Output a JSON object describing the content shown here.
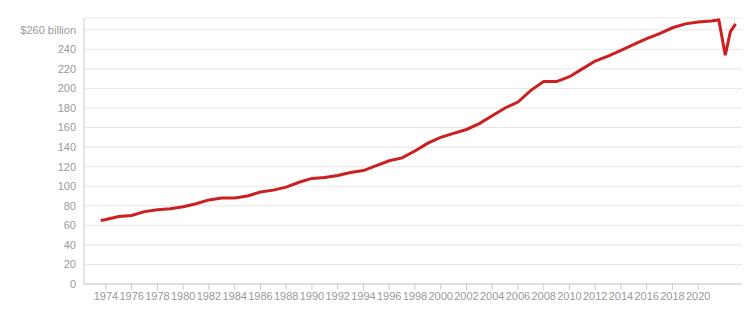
{
  "chart_data": {
    "type": "line",
    "color": "#cc1f1f",
    "grid": true,
    "line_style": "solid",
    "x": [
      1973.6,
      1974,
      1975,
      1976,
      1977,
      1978,
      1979,
      1980,
      1981,
      1982,
      1983,
      1984,
      1985,
      1986,
      1987,
      1988,
      1989,
      1990,
      1991,
      1992,
      1993,
      1994,
      1995,
      1996,
      1997,
      1998,
      1999,
      2000,
      2001,
      2002,
      2003,
      2004,
      2005,
      2006,
      2007,
      2008,
      2009,
      2010,
      2011,
      2012,
      2013,
      2014,
      2015,
      2016,
      2017,
      2018,
      2019,
      2020,
      2021,
      2021.6,
      2022.1,
      2022.5,
      2022.9
    ],
    "values": [
      65,
      66,
      69,
      70,
      74,
      76,
      77,
      79,
      82,
      86,
      88,
      88,
      90,
      94,
      96,
      99,
      104,
      108,
      109,
      111,
      114,
      116,
      121,
      126,
      129,
      136,
      144,
      150,
      154,
      158,
      164,
      172,
      180,
      186,
      198,
      207,
      207,
      212,
      220,
      228,
      233,
      239,
      245,
      251,
      256,
      262,
      266,
      268,
      269,
      270,
      234,
      258,
      266
    ],
    "xlim": [
      1972.3,
      2023.4
    ],
    "xticks": [
      1974,
      1976,
      1978,
      1980,
      1982,
      1984,
      1986,
      1988,
      1990,
      1992,
      1994,
      1996,
      1998,
      2000,
      2002,
      2004,
      2006,
      2008,
      2010,
      2012,
      2014,
      2016,
      2018,
      2020
    ],
    "ylim": [
      0,
      272
    ],
    "yticks": [
      0,
      20,
      40,
      60,
      80,
      100,
      120,
      140,
      160,
      180,
      200,
      220,
      240,
      {
        "value": 260,
        "label": "$260 billion"
      }
    ]
  }
}
